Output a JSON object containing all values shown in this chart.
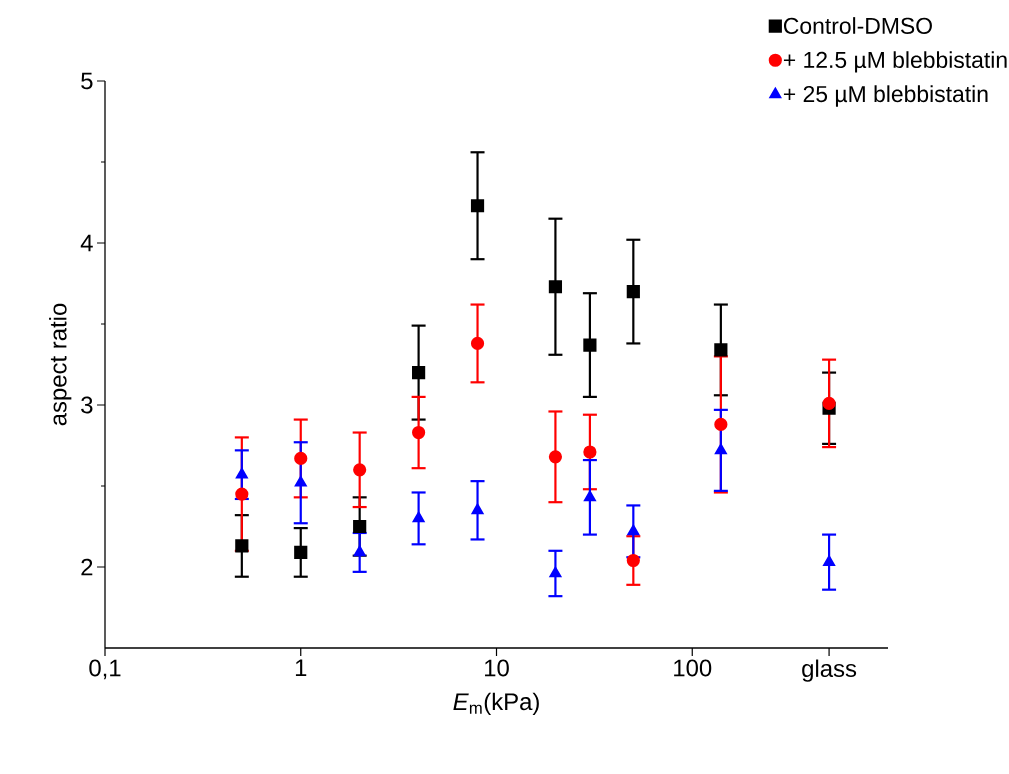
{
  "chart_data": {
    "type": "scatter",
    "xlabel": "*E*$_{m}$(kPa)",
    "ylabel": "aspect ratio",
    "x": [
      0.5,
      1,
      2,
      4,
      8,
      20,
      30,
      50,
      140,
      500
    ],
    "series": [
      {
        "name": "Control-DMSO",
        "color": "#000000",
        "marker": "square",
        "values": [
          2.13,
          2.09,
          2.25,
          3.2,
          4.23,
          3.73,
          3.37,
          3.7,
          3.34,
          2.98
        ],
        "errors": [
          0.19,
          0.15,
          0.18,
          0.29,
          0.33,
          0.42,
          0.32,
          0.32,
          0.28,
          0.22
        ]
      },
      {
        "name": "+ 12.5 µM blebbistatin",
        "color": "#ff0000",
        "marker": "circle",
        "values": [
          2.45,
          2.67,
          2.6,
          2.83,
          3.38,
          2.68,
          2.71,
          2.04,
          2.88,
          3.01
        ],
        "errors": [
          0.35,
          0.24,
          0.23,
          0.22,
          0.24,
          0.28,
          0.23,
          0.15,
          0.42,
          0.27
        ]
      },
      {
        "name": "+ 25 µM blebbistatin",
        "color": "#0000ff",
        "marker": "triangle",
        "values": [
          2.57,
          2.52,
          2.09,
          2.3,
          2.35,
          1.96,
          2.43,
          2.22,
          2.72,
          2.03
        ],
        "errors": [
          0.15,
          0.25,
          0.12,
          0.16,
          0.18,
          0.14,
          0.23,
          0.16,
          0.25,
          0.17
        ]
      }
    ],
    "log": "x",
    "xlim": [
      0.1,
      1000
    ],
    "ylim": [
      1.5,
      5
    ],
    "xticks": [
      {
        "value": 0.1,
        "label": "0,1"
      },
      1,
      10,
      100,
      {
        "value": 500,
        "label": "glass"
      }
    ],
    "yticks": [
      2,
      3,
      4,
      5
    ],
    "legend": "top right",
    "grid": false
  }
}
